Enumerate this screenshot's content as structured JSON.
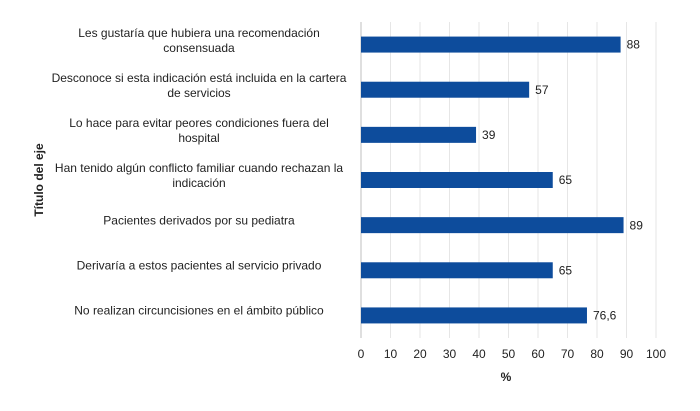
{
  "chart_data": {
    "type": "barh",
    "categories": [
      "Les gustaría que hubiera una recomendación consensuada",
      "Desconoce si esta indicación está incluida en la cartera de servicios",
      "Lo hace para evitar peores condiciones fuera del hospital",
      "Han tenido algún conflicto familiar cuando rechazan la indicación",
      "Pacientes derivados por su pediatra",
      "Derivaría a estos pacientes al servicio privado",
      "No realizan circuncisiones en el ámbito público"
    ],
    "values": [
      88,
      57,
      39,
      65,
      89,
      65,
      76.6
    ],
    "value_labels": [
      "88",
      "57",
      "39",
      "65",
      "89",
      "65",
      "76,6"
    ],
    "color": "#0d4c9c",
    "xlim": [
      0,
      100
    ],
    "xticks": [
      0,
      10,
      20,
      30,
      40,
      50,
      60,
      70,
      80,
      90,
      100
    ],
    "x_label": "%",
    "y_label": "Título del eje",
    "grid": true
  }
}
